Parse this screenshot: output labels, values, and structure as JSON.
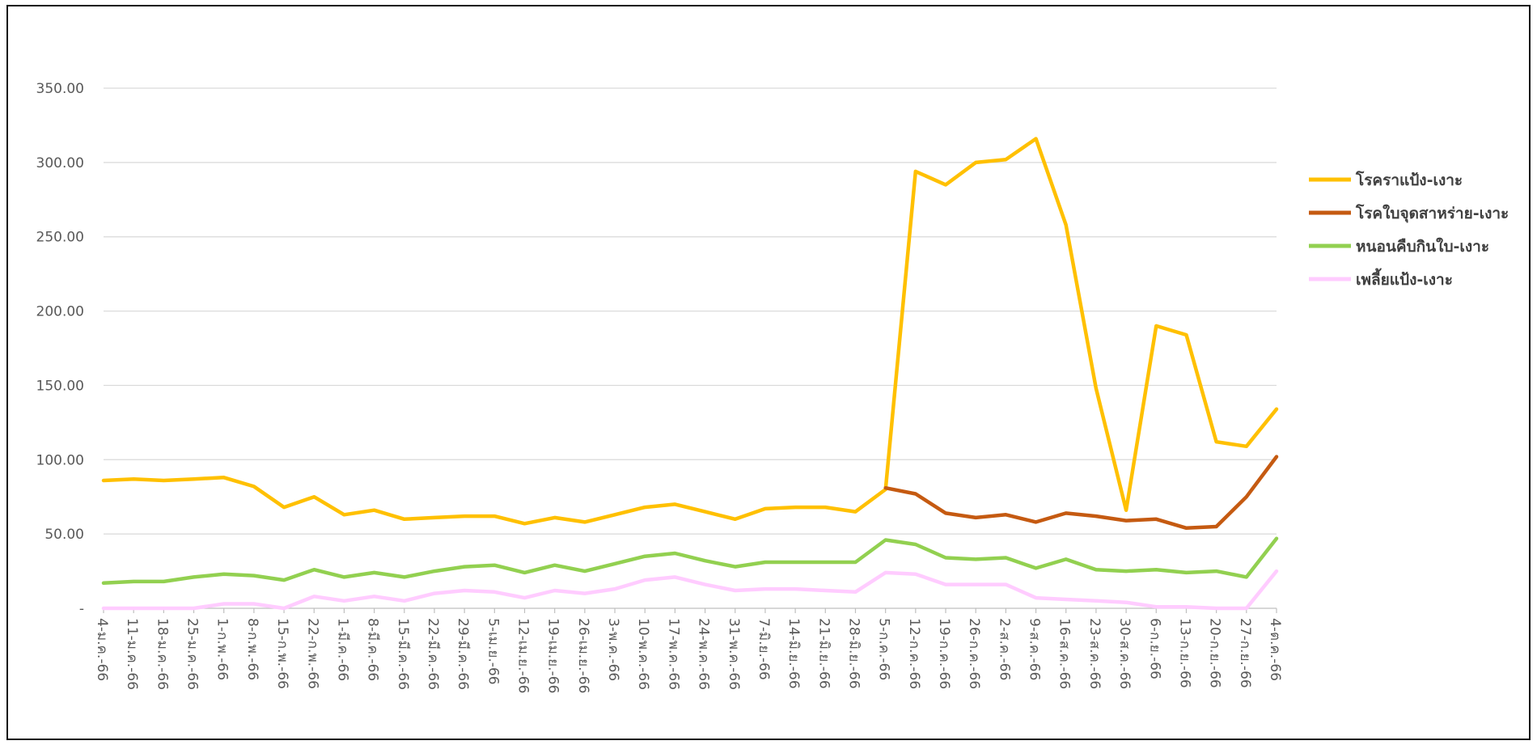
{
  "chart_data": {
    "type": "line",
    "title": "",
    "xlabel": "",
    "ylabel": "",
    "ylim": [
      0,
      350
    ],
    "yticks": [
      0,
      50,
      100,
      150,
      200,
      250,
      300,
      350
    ],
    "ytick_labels": [
      "-",
      "50.00",
      "100.00",
      "150.00",
      "200.00",
      "250.00",
      "300.00",
      "350.00"
    ],
    "grid": true,
    "legend_position": "right",
    "categories": [
      "4-ม.ค.-66",
      "11-ม.ค.-66",
      "18-ม.ค.-66",
      "25-ม.ค.-66",
      "1-ก.พ.-66",
      "8-ก.พ.-66",
      "15-ก.พ.-66",
      "22-ก.พ.-66",
      "1-มี.ค.-66",
      "8-มี.ค.-66",
      "15-มี.ค.-66",
      "22-มี.ค.-66",
      "29-มี.ค.-66",
      "5-เม.ย.-66",
      "12-เม.ย.-66",
      "19-เม.ย.-66",
      "26-เม.ย.-66",
      "3-พ.ค.-66",
      "10-พ.ค.-66",
      "17-พ.ค.-66",
      "24-พ.ค.-66",
      "31-พ.ค.-66",
      "7-มิ.ย.-66",
      "14-มิ.ย.-66",
      "21-มิ.ย.-66",
      "28-มิ.ย.-66",
      "5-ก.ค.-66",
      "12-ก.ค.-66",
      "19-ก.ค.-66",
      "26-ก.ค.-66",
      "2-ส.ค.-66",
      "9-ส.ค.-66",
      "16-ส.ค.-66",
      "23-ส.ค.-66",
      "30-ส.ค.-66",
      "6-ก.ย.-66",
      "13-ก.ย.-66",
      "20-ก.ย.-66",
      "27-ก.ย.-66",
      "4-ต.ค.-66"
    ],
    "series": [
      {
        "name": "โรคราแป้ง-เงาะ",
        "color": "#FFC000",
        "values": [
          86,
          87,
          86,
          87,
          88,
          82,
          68,
          75,
          63,
          66,
          60,
          61,
          62,
          62,
          57,
          61,
          58,
          63,
          68,
          70,
          65,
          60,
          67,
          68,
          68,
          65,
          80,
          294,
          285,
          300,
          302,
          316,
          258,
          148,
          66,
          190,
          184,
          112,
          109,
          134
        ]
      },
      {
        "name": "โรคใบจุดสาหร่าย-เงาะ",
        "color": "#C55A11",
        "values": [
          null,
          null,
          null,
          null,
          null,
          null,
          null,
          null,
          null,
          null,
          null,
          null,
          null,
          null,
          null,
          null,
          null,
          null,
          null,
          null,
          null,
          null,
          null,
          null,
          null,
          null,
          81,
          77,
          64,
          61,
          63,
          58,
          64,
          62,
          59,
          60,
          54,
          55,
          75,
          102
        ]
      },
      {
        "name": "หนอนคืบกินใบ-เงาะ",
        "color": "#92D050",
        "values": [
          17,
          18,
          18,
          21,
          23,
          22,
          19,
          26,
          21,
          24,
          21,
          25,
          28,
          29,
          24,
          29,
          25,
          30,
          35,
          37,
          32,
          28,
          31,
          31,
          31,
          31,
          46,
          43,
          34,
          33,
          34,
          27,
          33,
          26,
          25,
          26,
          24,
          25,
          21,
          47
        ]
      },
      {
        "name": "เพลี้ยแป้ง-เงาะ",
        "color": "#FFCCFF",
        "values": [
          0,
          0,
          0,
          0,
          3,
          3,
          0,
          8,
          5,
          8,
          5,
          10,
          12,
          11,
          7,
          12,
          10,
          13,
          19,
          21,
          16,
          12,
          13,
          13,
          12,
          11,
          24,
          23,
          16,
          16,
          16,
          7,
          6,
          5,
          4,
          1,
          1,
          0,
          0,
          25
        ]
      }
    ]
  }
}
